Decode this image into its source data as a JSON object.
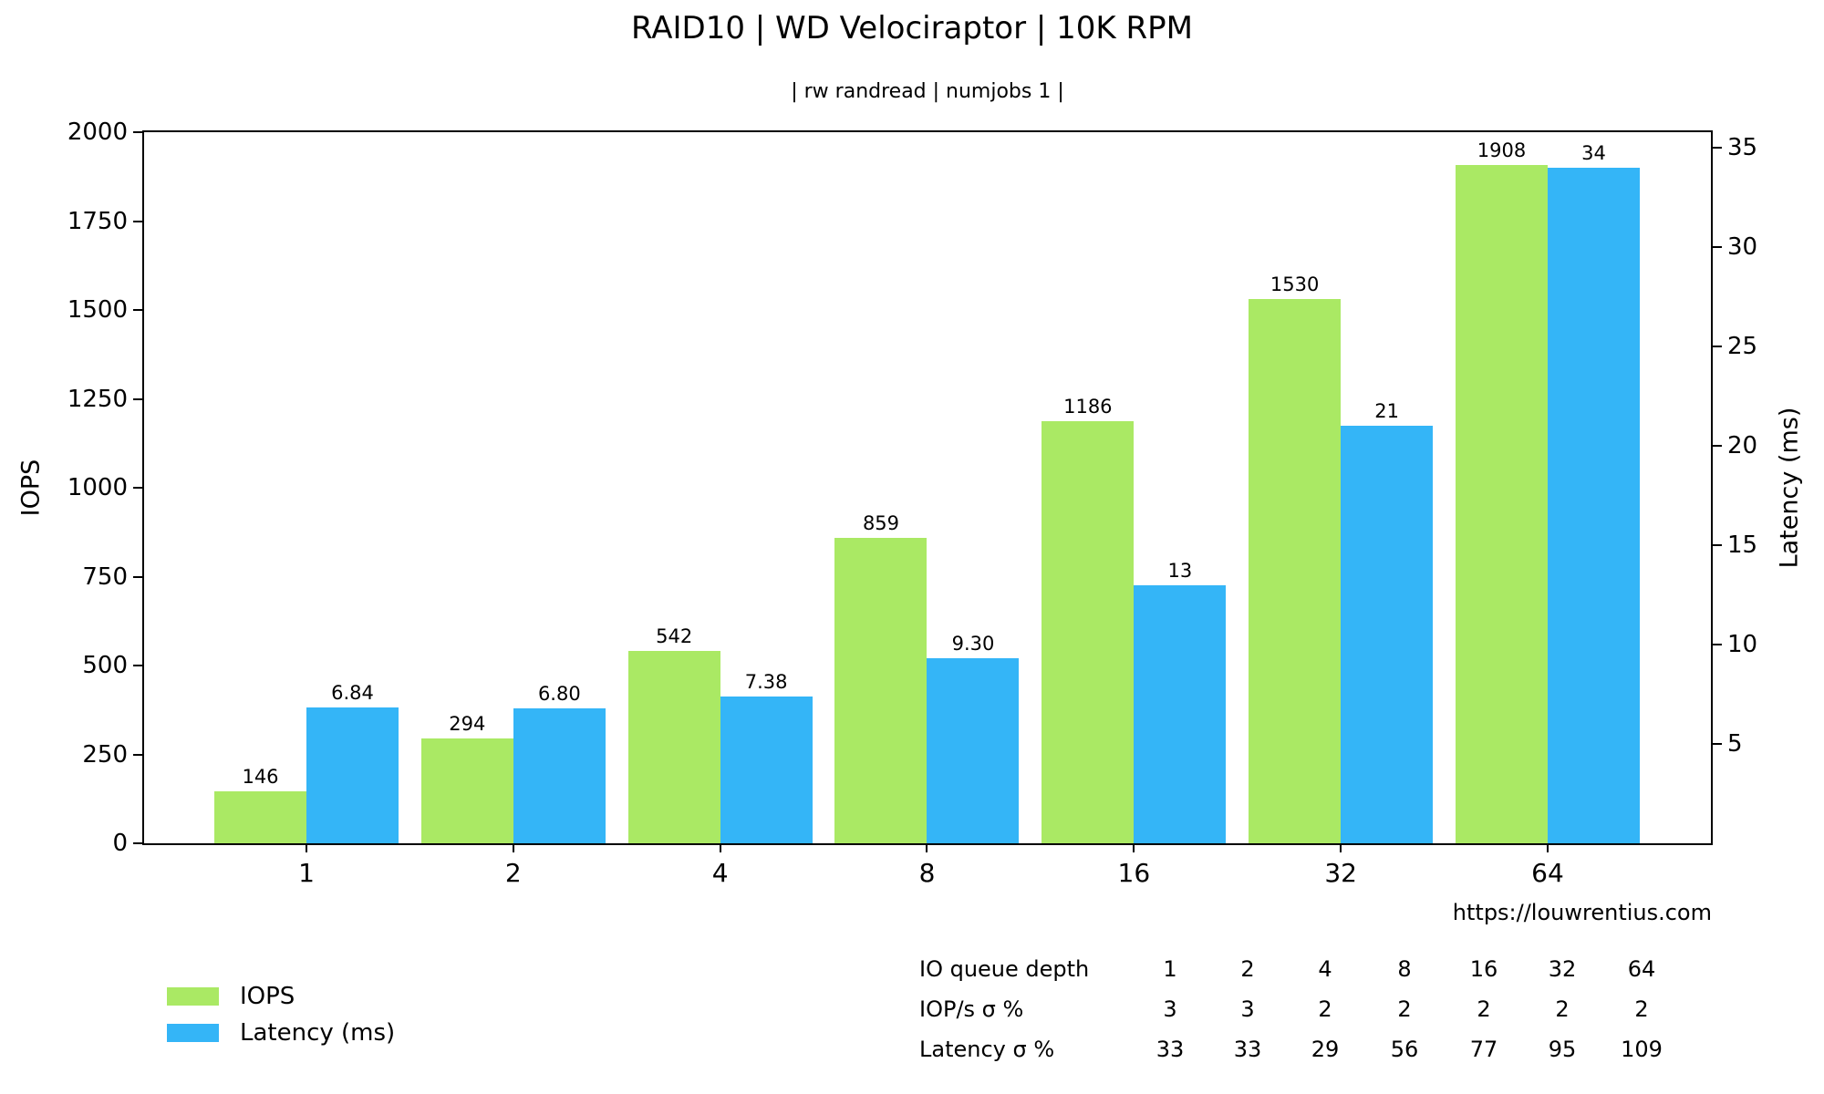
{
  "figure": {
    "title": "RAID10 | WD Velociraptor | 10K RPM",
    "subtitle": "| rw randread | numjobs 1 |",
    "watermark": "https://louwrentius.com",
    "background": "#ffffff",
    "text_color": "#000000"
  },
  "chart_data": {
    "type": "bar",
    "categories": [
      "1",
      "2",
      "4",
      "8",
      "16",
      "32",
      "64"
    ],
    "series": [
      {
        "name": "IOPS",
        "axis": "left",
        "color": "#aae964",
        "values": [
          146,
          294,
          542,
          859,
          1186,
          1530,
          1908
        ],
        "bar_labels": [
          "146",
          "294",
          "542",
          "859",
          "1186",
          "1530",
          "1908"
        ]
      },
      {
        "name": "Latency (ms)",
        "axis": "right",
        "color": "#34b5f7",
        "values": [
          6.84,
          6.8,
          7.38,
          9.3,
          13,
          21,
          34
        ],
        "bar_labels": [
          "6.84",
          "6.80",
          "7.38",
          "9.30",
          "13",
          "21",
          "34"
        ]
      }
    ],
    "left_axis": {
      "label": "IOPS",
      "ticks": [
        0,
        250,
        500,
        750,
        1000,
        1250,
        1500,
        1750,
        2000
      ],
      "range": [
        0,
        2000
      ]
    },
    "right_axis": {
      "label": "Latency (ms)",
      "ticks": [
        5,
        10,
        15,
        20,
        25,
        30,
        35
      ],
      "range": [
        0,
        35.8
      ]
    },
    "legend": {
      "position": "bottom-left",
      "entries": [
        {
          "label": "IOPS",
          "color": "#aae964"
        },
        {
          "label": "Latency (ms)",
          "color": "#34b5f7"
        }
      ]
    },
    "grid": false
  },
  "table": {
    "rows": [
      {
        "label": "IO queue depth",
        "values": [
          "1",
          "2",
          "4",
          "8",
          "16",
          "32",
          "64"
        ]
      },
      {
        "label": "IOP/s σ %",
        "values": [
          "3",
          "3",
          "2",
          "2",
          "2",
          "2",
          "2"
        ]
      },
      {
        "label": "Latency σ %",
        "values": [
          "33",
          "33",
          "29",
          "56",
          "77",
          "95",
          "109"
        ]
      }
    ]
  }
}
